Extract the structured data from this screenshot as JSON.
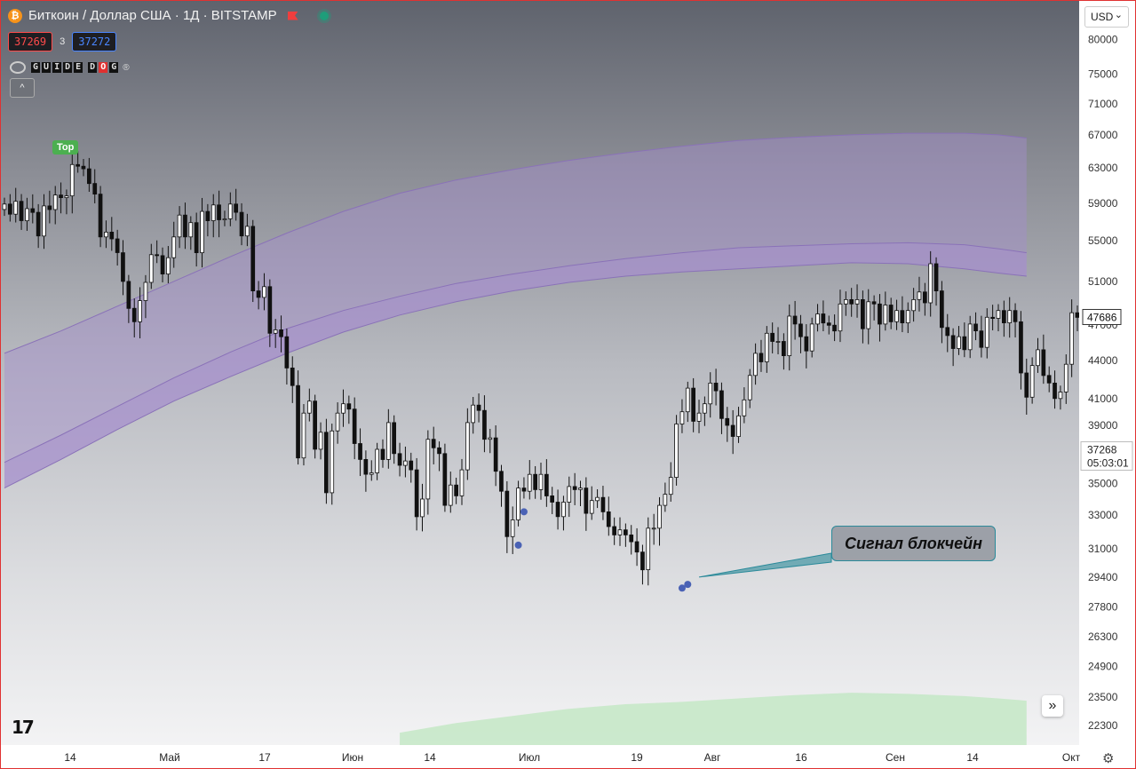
{
  "header": {
    "symbol_title": "Биткоин / Доллар США · 1Д · BITSTAMP",
    "coin_glyph": "₿",
    "bid_price": "37269",
    "spread": "3",
    "ask_price": "37272",
    "currency": "USD"
  },
  "indicator": {
    "logo_letters": [
      "G",
      "U",
      "I",
      "D",
      "E",
      "D",
      "O",
      "G"
    ],
    "logo_reg": "®",
    "collapse_glyph": "^"
  },
  "annotation": {
    "text": "Сигнал блокчейн"
  },
  "top_badge": "Top",
  "current_price": {
    "value": "37268",
    "countdown": "05:03:01"
  },
  "last_marker": "47686",
  "colors": {
    "band": "#a58fcc",
    "band_line": "#8a72b8",
    "green_area": "#c4e8c6",
    "annotation_line": "#2b8a9a",
    "signal_dot": "#4a62b5",
    "candle_up": "#ffffff",
    "candle_down": "#111111"
  },
  "icons": {
    "logo": "tradingview-logo",
    "goto": "double-chevron-right-icon",
    "settings": "gear-icon"
  },
  "chart_data": {
    "type": "candlestick",
    "title": "",
    "x_ticks": [
      "14",
      "Май",
      "17",
      "Июн",
      "14",
      "Июл",
      "19",
      "Авг",
      "16",
      "Сен",
      "14",
      "Окт"
    ],
    "y_ticks": [
      80000,
      75000,
      71000,
      67000,
      63000,
      59000,
      55000,
      51000,
      47000,
      44000,
      41000,
      39000,
      35000,
      33000,
      31000,
      29400,
      27800,
      26300,
      24900,
      23500,
      22300
    ],
    "ylim": [
      21500,
      86000
    ],
    "y_scale": "log",
    "close_sequence": [
      58900,
      57800,
      59200,
      57100,
      58400,
      58000,
      55500,
      58700,
      58300,
      59900,
      59600,
      59800,
      63400,
      63200,
      62900,
      61200,
      60000,
      55400,
      55900,
      55200,
      53800,
      51000,
      48500,
      47300,
      49200,
      50900,
      53600,
      53500,
      51700,
      53300,
      55400,
      57700,
      55400,
      56900,
      53800,
      58100,
      57100,
      58800,
      57200,
      57300,
      58900,
      58000,
      55500,
      56500,
      50100,
      49500,
      50500,
      46300,
      46600,
      46000,
      43400,
      42000,
      36700,
      39900,
      40800,
      37300,
      38500,
      34400,
      38600,
      39900,
      40600,
      40200,
      37700,
      36600,
      35600,
      35700,
      37300,
      36600,
      39200,
      37000,
      36200,
      36500,
      35900,
      32900,
      34000,
      38000,
      37400,
      37000,
      33600,
      34900,
      34200,
      35900,
      39200,
      40500,
      40100,
      38000,
      38100,
      35800,
      34500,
      31700,
      32700,
      34700,
      34500,
      35600,
      34600,
      35600,
      34200,
      33800,
      32900,
      33800,
      34800,
      34600,
      34700,
      33100,
      33900,
      34100,
      33200,
      32300,
      31800,
      32100,
      31800,
      31400,
      30800,
      29800,
      32200,
      32200,
      33600,
      34300,
      35400,
      39100,
      40000,
      41800,
      39300,
      39900,
      40600,
      42200,
      41600,
      39500,
      39000,
      38200,
      39700,
      40900,
      42800,
      44600,
      43900,
      46300,
      45600,
      45600,
      44400,
      47800,
      47100,
      46000,
      44800,
      47100,
      48000,
      47200,
      47000,
      46500,
      48900,
      49300,
      48900,
      49300,
      46700,
      49100,
      48900,
      47100,
      48800,
      47300,
      48300,
      47200,
      48300,
      49300,
      50000,
      49000,
      52700,
      50100,
      46800,
      46100,
      45000,
      46000,
      44900,
      47100,
      46500,
      45100,
      47700,
      47600,
      48300,
      47200,
      48300,
      47300,
      43000,
      41100,
      43600,
      44900,
      42800,
      42200,
      41000,
      41500,
      43700,
      48100,
      47686
    ],
    "band_upper_outer": [
      [
        0,
        44600
      ],
      [
        10,
        46500
      ],
      [
        20,
        48700
      ],
      [
        30,
        51000
      ],
      [
        40,
        53400
      ],
      [
        50,
        55800
      ],
      [
        60,
        58100
      ],
      [
        70,
        60100
      ],
      [
        80,
        61600
      ],
      [
        90,
        62800
      ],
      [
        100,
        63900
      ],
      [
        110,
        64800
      ],
      [
        120,
        65600
      ],
      [
        130,
        66300
      ],
      [
        140,
        66700
      ],
      [
        150,
        67000
      ],
      [
        160,
        67200
      ],
      [
        170,
        67200
      ],
      [
        176,
        67000
      ],
      [
        181,
        66600
      ]
    ],
    "band_upper_inner": [
      [
        0,
        36400
      ],
      [
        10,
        38300
      ],
      [
        20,
        40400
      ],
      [
        30,
        42600
      ],
      [
        40,
        44700
      ],
      [
        50,
        46700
      ],
      [
        60,
        48300
      ],
      [
        70,
        49600
      ],
      [
        80,
        50800
      ],
      [
        90,
        51700
      ],
      [
        100,
        52500
      ],
      [
        110,
        53200
      ],
      [
        120,
        53800
      ],
      [
        130,
        54300
      ],
      [
        140,
        54500
      ],
      [
        150,
        54700
      ],
      [
        160,
        54800
      ],
      [
        170,
        54600
      ],
      [
        176,
        54200
      ],
      [
        181,
        53800
      ]
    ],
    "band_lower_outer": [
      [
        0,
        34700
      ],
      [
        10,
        36600
      ],
      [
        20,
        38700
      ],
      [
        30,
        40800
      ],
      [
        40,
        42700
      ],
      [
        50,
        44600
      ],
      [
        60,
        46400
      ],
      [
        70,
        47900
      ],
      [
        80,
        49100
      ],
      [
        90,
        50100
      ],
      [
        100,
        50900
      ],
      [
        110,
        51500
      ],
      [
        120,
        51900
      ],
      [
        130,
        52200
      ],
      [
        140,
        52500
      ],
      [
        150,
        52800
      ],
      [
        160,
        52700
      ],
      [
        170,
        52200
      ],
      [
        176,
        51800
      ],
      [
        181,
        51500
      ]
    ],
    "green_area": [
      [
        70,
        22000
      ],
      [
        80,
        22400
      ],
      [
        90,
        22700
      ],
      [
        100,
        23000
      ],
      [
        110,
        23200
      ],
      [
        120,
        23300
      ],
      [
        130,
        23450
      ],
      [
        140,
        23600
      ],
      [
        150,
        23700
      ],
      [
        160,
        23650
      ],
      [
        170,
        23550
      ],
      [
        176,
        23450
      ],
      [
        181,
        23350
      ]
    ],
    "signals": [
      [
        92,
        33200
      ],
      [
        91,
        31200
      ],
      [
        120,
        28800
      ],
      [
        121,
        29000
      ]
    ],
    "annotation_anchor": [
      123,
      29400
    ]
  }
}
